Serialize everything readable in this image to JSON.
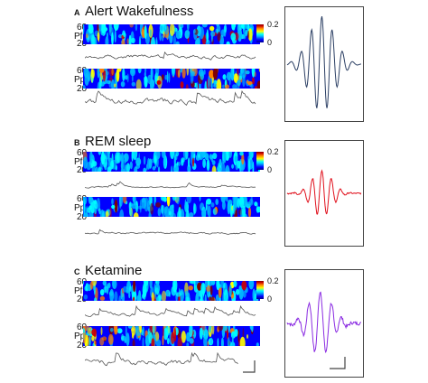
{
  "panels": [
    {
      "letter": "A",
      "title": "Alert Wakefulness",
      "wave_color": "#2a3e63",
      "scale_top": "0.2",
      "scale_bottom": "0"
    },
    {
      "letter": "B",
      "title": "REM sleep",
      "wave_color": "#e0101c",
      "scale_top": "0.2",
      "scale_bottom": "0"
    },
    {
      "letter": "C",
      "title": "Ketamine",
      "wave_color": "#8a2be2",
      "scale_top": "0.2",
      "scale_bottom": "0"
    }
  ],
  "freq_axis": {
    "top": "60",
    "bottom": "20"
  },
  "channels": {
    "pf": "Pf",
    "pp": "Pp"
  },
  "colorscale": [
    "#00008b",
    "#0000ff",
    "#00bfff",
    "#00ffff",
    "#ffff00",
    "#ff8000",
    "#cc0000",
    "#7f0000"
  ]
}
